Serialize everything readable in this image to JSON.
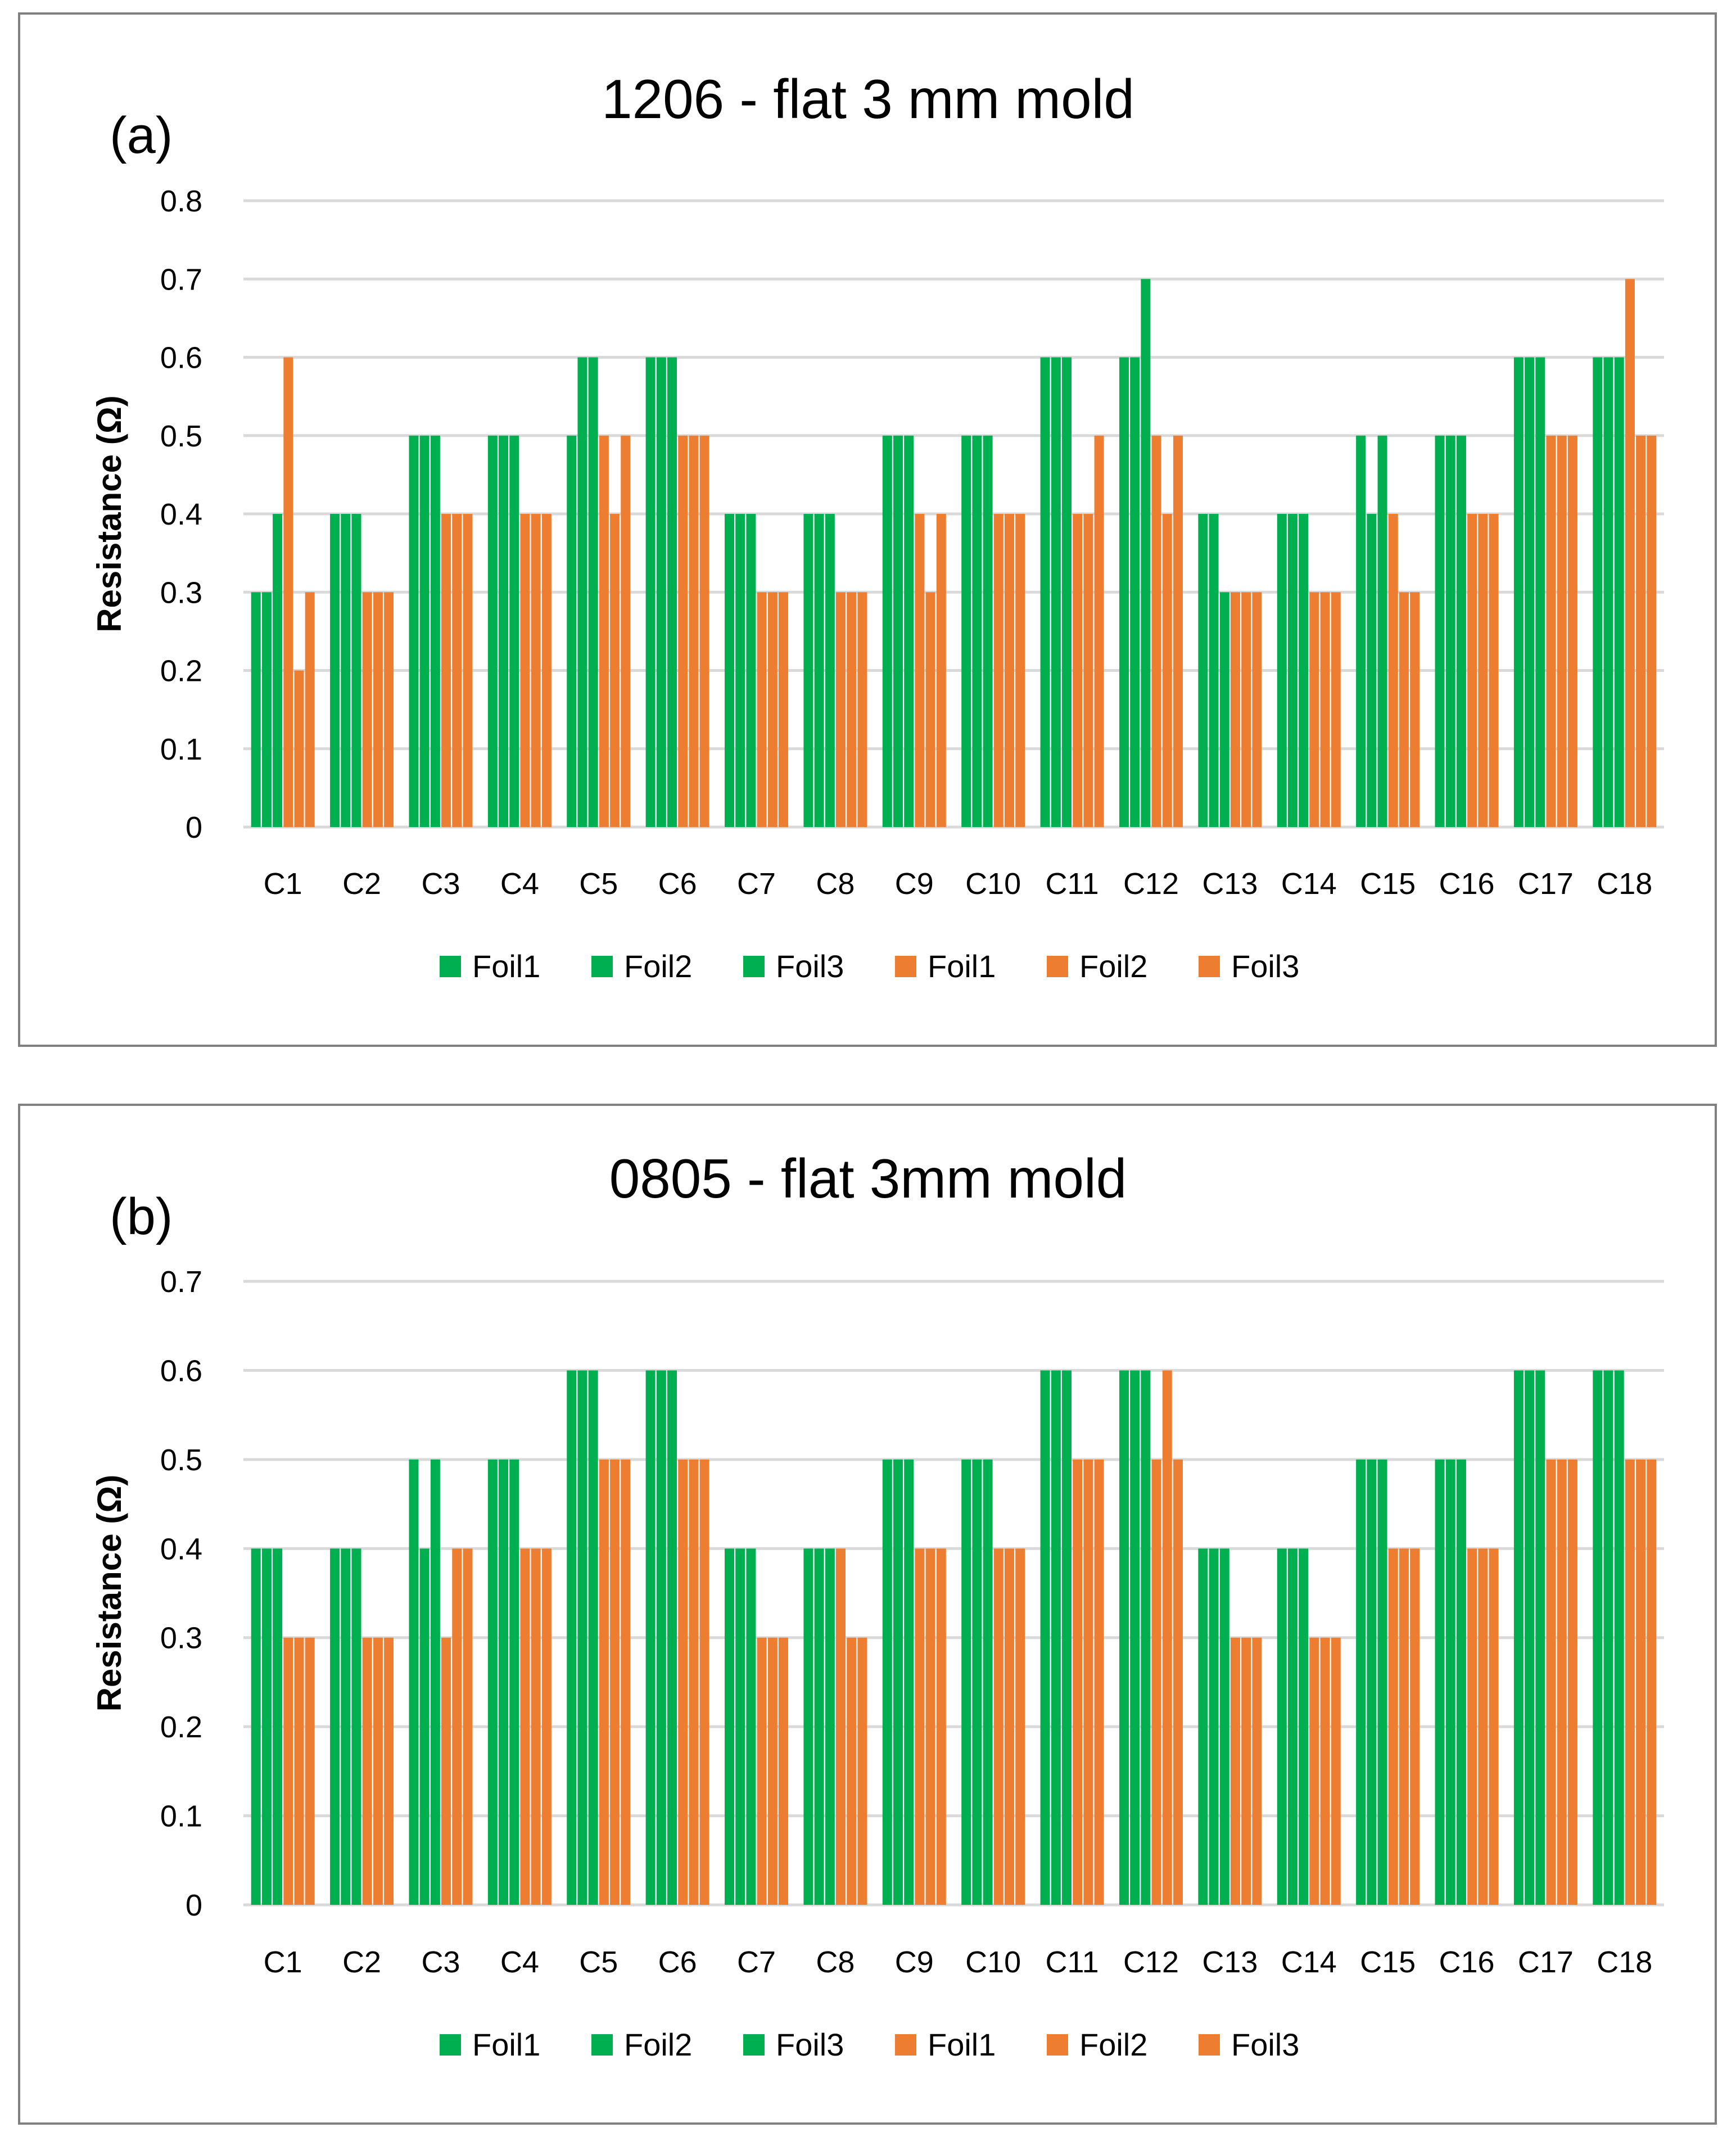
{
  "colors": {
    "green": "#00B050",
    "orange": "#ED7D31",
    "grid": "#D9D9D9",
    "border": "#808080",
    "text": "#000000"
  },
  "chart_data": [
    {
      "type": "bar",
      "panel_label": "(a)",
      "title": "1206 - flat 3 mm mold",
      "xlabel": "",
      "ylabel": "Resistance (Ω)",
      "ylim": [
        0,
        0.8
      ],
      "yticks": [
        "0",
        "0.1",
        "0.2",
        "0.3",
        "0.4",
        "0.5",
        "0.6",
        "0.7",
        "0.8"
      ],
      "grid": true,
      "legend_position": "bottom",
      "categories": [
        "C1",
        "C2",
        "C3",
        "C4",
        "C5",
        "C6",
        "C7",
        "C8",
        "C9",
        "C10",
        "C11",
        "C12",
        "C13",
        "C14",
        "C15",
        "C16",
        "C17",
        "C18"
      ],
      "series": [
        {
          "name": "Foil1",
          "color": "#00B050",
          "values": [
            0.3,
            0.4,
            0.5,
            0.5,
            0.5,
            0.6,
            0.4,
            0.4,
            0.5,
            0.5,
            0.6,
            0.6,
            0.4,
            0.4,
            0.5,
            0.5,
            0.6,
            0.6
          ]
        },
        {
          "name": "Foil2",
          "color": "#00B050",
          "values": [
            0.3,
            0.4,
            0.5,
            0.5,
            0.6,
            0.6,
            0.4,
            0.4,
            0.5,
            0.5,
            0.6,
            0.6,
            0.4,
            0.4,
            0.4,
            0.5,
            0.6,
            0.6
          ]
        },
        {
          "name": "Foil3",
          "color": "#00B050",
          "values": [
            0.4,
            0.4,
            0.5,
            0.5,
            0.6,
            0.6,
            0.4,
            0.4,
            0.5,
            0.5,
            0.6,
            0.7,
            0.3,
            0.4,
            0.5,
            0.5,
            0.6,
            0.6
          ]
        },
        {
          "name": "Foil1",
          "color": "#ED7D31",
          "values": [
            0.6,
            0.3,
            0.4,
            0.4,
            0.5,
            0.5,
            0.3,
            0.3,
            0.4,
            0.4,
            0.4,
            0.5,
            0.3,
            0.3,
            0.4,
            0.4,
            0.5,
            0.7
          ]
        },
        {
          "name": "Foil2",
          "color": "#ED7D31",
          "values": [
            0.2,
            0.3,
            0.4,
            0.4,
            0.4,
            0.5,
            0.3,
            0.3,
            0.3,
            0.4,
            0.4,
            0.4,
            0.3,
            0.3,
            0.3,
            0.4,
            0.5,
            0.5
          ]
        },
        {
          "name": "Foil3",
          "color": "#ED7D31",
          "values": [
            0.3,
            0.3,
            0.4,
            0.4,
            0.5,
            0.5,
            0.3,
            0.3,
            0.4,
            0.4,
            0.5,
            0.5,
            0.3,
            0.3,
            0.3,
            0.4,
            0.5,
            0.5
          ]
        }
      ]
    },
    {
      "type": "bar",
      "panel_label": "(b)",
      "title": "0805 - flat 3mm mold",
      "xlabel": "",
      "ylabel": "Resistance (Ω)",
      "ylim": [
        0,
        0.7
      ],
      "yticks": [
        "0",
        "0.1",
        "0.2",
        "0.3",
        "0.4",
        "0.5",
        "0.6",
        "0.7"
      ],
      "grid": true,
      "legend_position": "bottom",
      "categories": [
        "C1",
        "C2",
        "C3",
        "C4",
        "C5",
        "C6",
        "C7",
        "C8",
        "C9",
        "C10",
        "C11",
        "C12",
        "C13",
        "C14",
        "C15",
        "C16",
        "C17",
        "C18"
      ],
      "series": [
        {
          "name": "Foil1",
          "color": "#00B050",
          "values": [
            0.4,
            0.4,
            0.5,
            0.5,
            0.6,
            0.6,
            0.4,
            0.4,
            0.5,
            0.5,
            0.6,
            0.6,
            0.4,
            0.4,
            0.5,
            0.5,
            0.6,
            0.6
          ]
        },
        {
          "name": "Foil2",
          "color": "#00B050",
          "values": [
            0.4,
            0.4,
            0.4,
            0.5,
            0.6,
            0.6,
            0.4,
            0.4,
            0.5,
            0.5,
            0.6,
            0.6,
            0.4,
            0.4,
            0.5,
            0.5,
            0.6,
            0.6
          ]
        },
        {
          "name": "Foil3",
          "color": "#00B050",
          "values": [
            0.4,
            0.4,
            0.5,
            0.5,
            0.6,
            0.6,
            0.4,
            0.4,
            0.5,
            0.5,
            0.6,
            0.6,
            0.4,
            0.4,
            0.5,
            0.5,
            0.6,
            0.6
          ]
        },
        {
          "name": "Foil1",
          "color": "#ED7D31",
          "values": [
            0.3,
            0.3,
            0.3,
            0.4,
            0.5,
            0.5,
            0.3,
            0.4,
            0.4,
            0.4,
            0.5,
            0.5,
            0.3,
            0.3,
            0.4,
            0.4,
            0.5,
            0.5
          ]
        },
        {
          "name": "Foil2",
          "color": "#ED7D31",
          "values": [
            0.3,
            0.3,
            0.4,
            0.4,
            0.5,
            0.5,
            0.3,
            0.3,
            0.4,
            0.4,
            0.5,
            0.6,
            0.3,
            0.3,
            0.4,
            0.4,
            0.5,
            0.5
          ]
        },
        {
          "name": "Foil3",
          "color": "#ED7D31",
          "values": [
            0.3,
            0.3,
            0.4,
            0.4,
            0.5,
            0.5,
            0.3,
            0.3,
            0.4,
            0.4,
            0.5,
            0.5,
            0.3,
            0.3,
            0.4,
            0.4,
            0.5,
            0.5
          ]
        }
      ]
    }
  ]
}
